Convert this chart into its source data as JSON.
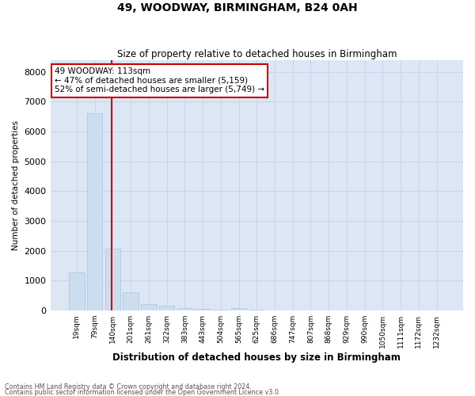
{
  "title": "49, WOODWAY, BIRMINGHAM, B24 0AH",
  "subtitle": "Size of property relative to detached houses in Birmingham",
  "xlabel": "Distribution of detached houses by size in Birmingham",
  "ylabel": "Number of detached properties",
  "footnote1": "Contains HM Land Registry data © Crown copyright and database right 2024.",
  "footnote2": "Contains public sector information licensed under the Open Government Licence v3.0.",
  "annotation_line1": "49 WOODWAY: 113sqm",
  "annotation_line2": "← 47% of detached houses are smaller (5,159)",
  "annotation_line3": "52% of semi-detached houses are larger (5,749) →",
  "bar_color": "#ccddf0",
  "bar_edge_color": "#aac4de",
  "red_line_color": "#cc0000",
  "annotation_box_edge": "#cc0000",
  "grid_color": "#c8d4e8",
  "background_color": "#dce6f5",
  "categories": [
    "19sqm",
    "79sqm",
    "140sqm",
    "201sqm",
    "261sqm",
    "322sqm",
    "383sqm",
    "443sqm",
    "504sqm",
    "565sqm",
    "625sqm",
    "686sqm",
    "747sqm",
    "807sqm",
    "868sqm",
    "929sqm",
    "990sqm",
    "1050sqm",
    "1111sqm",
    "1172sqm",
    "1232sqm"
  ],
  "values": [
    1270,
    6600,
    2060,
    610,
    210,
    155,
    80,
    50,
    30,
    70,
    20,
    0,
    0,
    0,
    0,
    0,
    0,
    0,
    0,
    0,
    0
  ],
  "red_line_x": 1.93,
  "ylim": [
    0,
    8400
  ],
  "yticks": [
    0,
    1000,
    2000,
    3000,
    4000,
    5000,
    6000,
    7000,
    8000
  ]
}
